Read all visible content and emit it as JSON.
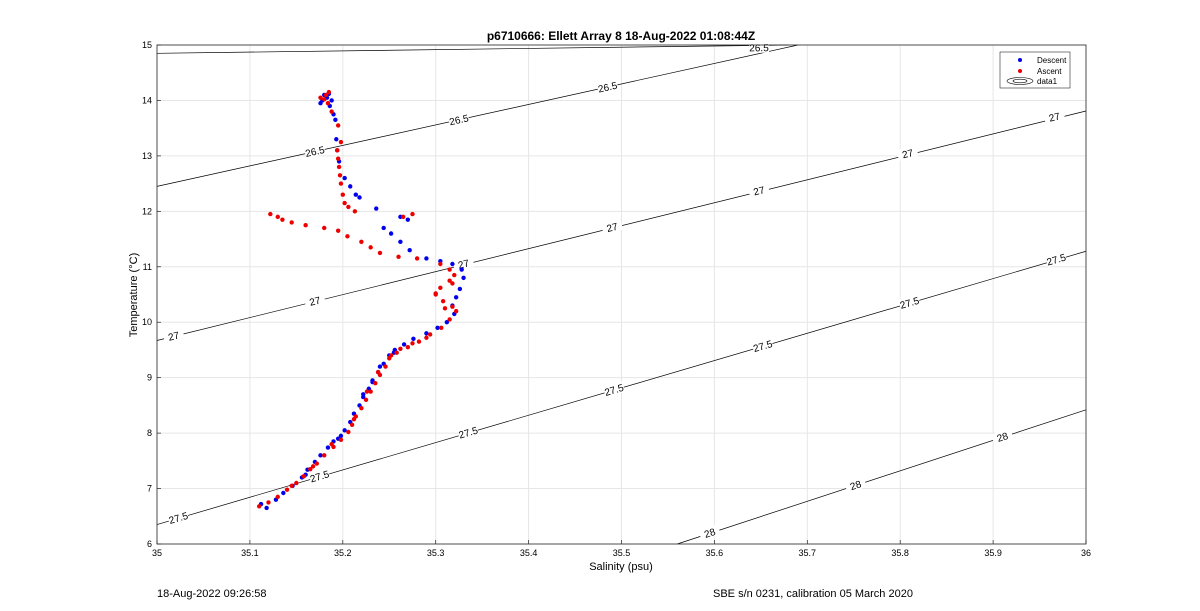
{
  "chart_data": {
    "type": "scatter",
    "title": "p6710666: Ellett Array 8 18-Aug-2022 01:08:44Z",
    "xlabel": "Salinity (psu)",
    "ylabel": "Temperature (°C)",
    "xlim": [
      35,
      36
    ],
    "ylim": [
      6,
      15
    ],
    "xticks": [
      "35",
      "35.1",
      "35.2",
      "35.3",
      "35.4",
      "35.5",
      "35.6",
      "35.7",
      "35.8",
      "35.9",
      "36"
    ],
    "yticks": [
      "6",
      "7",
      "8",
      "9",
      "10",
      "11",
      "12",
      "13",
      "14",
      "15"
    ],
    "grid": true,
    "legend": {
      "position": "top-right",
      "entries": [
        "Descent",
        "Ascent",
        "data1"
      ]
    },
    "colors": {
      "descent": "#0000ee",
      "ascent": "#ee0000",
      "contour": "#000000",
      "grid": "#e6e6e6"
    },
    "contours": [
      {
        "level": "26.5",
        "points": [
          [
            35,
            14.85
          ],
          [
            35.68,
            15
          ]
        ],
        "labels": [
          {
            "x": 35.648,
            "y": 14.95
          }
        ]
      },
      {
        "level": "26.5",
        "points": [
          [
            35,
            12.45
          ],
          [
            35.69,
            15
          ]
        ],
        "labels": [
          {
            "x": 35.17,
            "y": 13.08
          },
          {
            "x": 35.325,
            "y": 13.65
          },
          {
            "x": 35.485,
            "y": 14.24
          }
        ]
      },
      {
        "level": "27",
        "points": [
          [
            35,
            9.67
          ],
          [
            36,
            13.81
          ]
        ],
        "labels": [
          {
            "x": 35.018,
            "y": 9.75
          },
          {
            "x": 35.17,
            "y": 10.38
          },
          {
            "x": 35.33,
            "y": 11.05
          },
          {
            "x": 35.49,
            "y": 11.71
          },
          {
            "x": 35.648,
            "y": 12.37
          },
          {
            "x": 35.808,
            "y": 13.04
          },
          {
            "x": 35.966,
            "y": 13.7
          }
        ]
      },
      {
        "level": "27.5",
        "points": [
          [
            35,
            6.35
          ],
          [
            36,
            11.28
          ]
        ],
        "labels": [
          {
            "x": 35.023,
            "y": 6.47
          },
          {
            "x": 35.175,
            "y": 7.22
          },
          {
            "x": 35.335,
            "y": 8.01
          },
          {
            "x": 35.492,
            "y": 8.78
          },
          {
            "x": 35.652,
            "y": 9.57
          },
          {
            "x": 35.81,
            "y": 10.35
          },
          {
            "x": 35.968,
            "y": 11.13
          }
        ]
      },
      {
        "level": "28",
        "points": [
          [
            35.56,
            6
          ],
          [
            36,
            8.42
          ]
        ],
        "labels": [
          {
            "x": 35.595,
            "y": 6.2
          },
          {
            "x": 35.752,
            "y": 7.06
          },
          {
            "x": 35.91,
            "y": 7.93
          }
        ]
      }
    ],
    "series": [
      {
        "name": "Descent",
        "points": [
          [
            35.118,
            6.65
          ],
          [
            35.112,
            6.72
          ],
          [
            35.128,
            6.8
          ],
          [
            35.136,
            6.92
          ],
          [
            35.146,
            7.05
          ],
          [
            35.156,
            7.2
          ],
          [
            35.162,
            7.34
          ],
          [
            35.17,
            7.48
          ],
          [
            35.176,
            7.6
          ],
          [
            35.184,
            7.74
          ],
          [
            35.195,
            7.9
          ],
          [
            35.202,
            8.05
          ],
          [
            35.208,
            8.2
          ],
          [
            35.212,
            8.35
          ],
          [
            35.218,
            8.5
          ],
          [
            35.222,
            8.65
          ],
          [
            35.228,
            8.8
          ],
          [
            35.232,
            8.95
          ],
          [
            35.238,
            9.1
          ],
          [
            35.244,
            9.25
          ],
          [
            35.25,
            9.4
          ],
          [
            35.256,
            9.5
          ],
          [
            35.266,
            9.6
          ],
          [
            35.276,
            9.7
          ],
          [
            35.29,
            9.8
          ],
          [
            35.302,
            9.9
          ],
          [
            35.312,
            10.0
          ],
          [
            35.32,
            10.15
          ],
          [
            35.318,
            10.3
          ],
          [
            35.322,
            10.45
          ],
          [
            35.326,
            10.6
          ],
          [
            35.33,
            10.8
          ],
          [
            35.328,
            10.95
          ],
          [
            35.318,
            11.05
          ],
          [
            35.305,
            11.1
          ],
          [
            35.29,
            11.15
          ],
          [
            35.272,
            11.3
          ],
          [
            35.262,
            11.45
          ],
          [
            35.252,
            11.6
          ],
          [
            35.244,
            11.7
          ],
          [
            35.27,
            11.85
          ],
          [
            35.262,
            11.9
          ],
          [
            35.236,
            12.05
          ],
          [
            35.218,
            12.25
          ],
          [
            35.214,
            12.3
          ],
          [
            35.208,
            12.45
          ],
          [
            35.202,
            12.6
          ],
          [
            35.196,
            12.9
          ],
          [
            35.194,
            13.1
          ],
          [
            35.193,
            13.3
          ],
          [
            35.192,
            13.65
          ],
          [
            35.19,
            13.75
          ],
          [
            35.186,
            13.9
          ],
          [
            35.183,
            14.05
          ],
          [
            35.18,
            14.1
          ],
          [
            35.178,
            14.0
          ],
          [
            35.176,
            13.95
          ],
          [
            35.188,
            14.0
          ],
          [
            35.185,
            14.12
          ],
          [
            35.255,
            9.45
          ],
          [
            35.24,
            9.2
          ],
          [
            35.222,
            8.7
          ],
          [
            35.232,
            8.92
          ],
          [
            35.198,
            7.95
          ],
          [
            35.19,
            7.85
          ],
          [
            35.16,
            7.25
          ]
        ]
      },
      {
        "name": "Ascent",
        "points": [
          [
            35.11,
            6.68
          ],
          [
            35.12,
            6.75
          ],
          [
            35.13,
            6.85
          ],
          [
            35.14,
            6.98
          ],
          [
            35.15,
            7.1
          ],
          [
            35.158,
            7.22
          ],
          [
            35.165,
            7.35
          ],
          [
            35.172,
            7.45
          ],
          [
            35.18,
            7.6
          ],
          [
            35.19,
            7.75
          ],
          [
            35.198,
            7.88
          ],
          [
            35.206,
            8.02
          ],
          [
            35.21,
            8.15
          ],
          [
            35.214,
            8.3
          ],
          [
            35.22,
            8.45
          ],
          [
            35.225,
            8.6
          ],
          [
            35.23,
            8.75
          ],
          [
            35.235,
            8.9
          ],
          [
            35.24,
            9.05
          ],
          [
            35.246,
            9.2
          ],
          [
            35.25,
            9.35
          ],
          [
            35.258,
            9.45
          ],
          [
            35.27,
            9.55
          ],
          [
            35.282,
            9.65
          ],
          [
            35.294,
            9.78
          ],
          [
            35.306,
            9.9
          ],
          [
            35.315,
            10.05
          ],
          [
            35.322,
            10.2
          ],
          [
            35.318,
            10.28
          ],
          [
            35.308,
            10.38
          ],
          [
            35.3,
            10.5
          ],
          [
            35.305,
            10.62
          ],
          [
            35.315,
            10.75
          ],
          [
            35.32,
            10.85
          ],
          [
            35.315,
            10.95
          ],
          [
            35.305,
            11.05
          ],
          [
            35.28,
            11.15
          ],
          [
            35.26,
            11.18
          ],
          [
            35.24,
            11.25
          ],
          [
            35.23,
            11.35
          ],
          [
            35.22,
            11.45
          ],
          [
            35.205,
            11.55
          ],
          [
            35.195,
            11.65
          ],
          [
            35.18,
            11.7
          ],
          [
            35.16,
            11.75
          ],
          [
            35.145,
            11.8
          ],
          [
            35.135,
            11.85
          ],
          [
            35.13,
            11.9
          ],
          [
            35.122,
            11.95
          ],
          [
            35.213,
            12.0
          ],
          [
            35.206,
            12.08
          ],
          [
            35.202,
            12.15
          ],
          [
            35.2,
            12.3
          ],
          [
            35.198,
            12.5
          ],
          [
            35.197,
            12.65
          ],
          [
            35.196,
            12.8
          ],
          [
            35.195,
            12.95
          ],
          [
            35.194,
            13.1
          ],
          [
            35.198,
            13.25
          ],
          [
            35.195,
            13.55
          ],
          [
            35.188,
            13.8
          ],
          [
            35.184,
            13.95
          ],
          [
            35.18,
            14.02
          ],
          [
            35.182,
            14.1
          ],
          [
            35.185,
            14.15
          ],
          [
            35.176,
            14.05
          ],
          [
            35.252,
            9.4
          ],
          [
            35.238,
            9.1
          ],
          [
            35.226,
            8.75
          ],
          [
            35.212,
            8.25
          ],
          [
            35.188,
            7.8
          ],
          [
            35.168,
            7.4
          ],
          [
            35.145,
            7.05
          ],
          [
            35.262,
            9.52
          ],
          [
            35.275,
            9.62
          ],
          [
            35.29,
            9.72
          ],
          [
            35.31,
            10.25
          ],
          [
            35.3,
            10.52
          ],
          [
            35.318,
            10.7
          ],
          [
            35.265,
            11.9
          ],
          [
            35.275,
            11.95
          ]
        ]
      }
    ]
  },
  "footer": {
    "left": "18-Aug-2022 09:26:58",
    "right": "SBE s/n 0231, calibration 05 March 2020"
  }
}
